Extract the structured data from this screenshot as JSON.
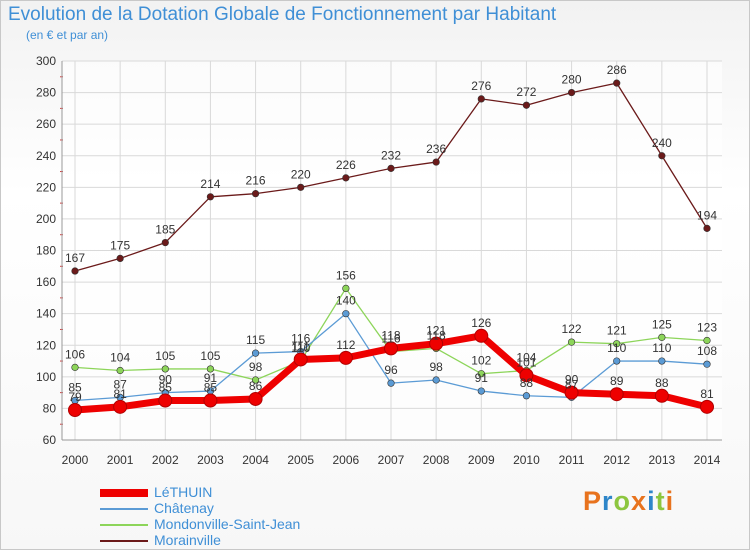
{
  "header": {
    "title": "Evolution de la Dotation Globale de Fonctionnement par Habitant",
    "subtitle": "(en € et par an)"
  },
  "logo": {
    "text": "Proxiti",
    "colors": [
      "#e8731e",
      "#2e86c9",
      "#8dc63f",
      "#e8731e",
      "#2e86c9",
      "#8dc63f",
      "#e8731e"
    ]
  },
  "chart_data": {
    "type": "line",
    "title": "Evolution de la Dotation Globale de Fonctionnement par Habitant",
    "subtitle": "(en € et par an)",
    "x": [
      2000,
      2001,
      2002,
      2003,
      2004,
      2005,
      2006,
      2007,
      2008,
      2009,
      2010,
      2011,
      2012,
      2013,
      2014
    ],
    "ylim": [
      60,
      300
    ],
    "yticks": [
      60,
      80,
      100,
      120,
      140,
      160,
      180,
      200,
      220,
      240,
      260,
      280,
      300
    ],
    "grid": true,
    "legend": "bottom-left",
    "series": [
      {
        "name": "Morainville",
        "color": "#6b1a1a",
        "values": [
          167,
          175,
          185,
          214,
          216,
          220,
          226,
          232,
          236,
          276,
          272,
          280,
          286,
          240,
          194
        ]
      },
      {
        "name": "Mondonville-Saint-Jean",
        "color": "#8dd55a",
        "values": [
          106,
          104,
          105,
          105,
          98,
          110,
          156,
          116,
          118,
          102,
          104,
          122,
          121,
          125,
          123
        ]
      },
      {
        "name": "Châtenay",
        "color": "#5b9bd5",
        "values": [
          85,
          87,
          90,
          91,
          115,
          116,
          140,
          96,
          98,
          91,
          88,
          87,
          110,
          110,
          108
        ]
      },
      {
        "name": "LéTHUIN",
        "color": "#ee0000",
        "values": [
          79,
          81,
          85,
          85,
          86,
          111,
          112,
          118,
          121,
          126,
          101,
          90,
          89,
          88,
          81
        ]
      }
    ],
    "legend_order": [
      "LéTHUIN",
      "Châtenay",
      "Mondonville-Saint-Jean",
      "Morainville"
    ]
  }
}
